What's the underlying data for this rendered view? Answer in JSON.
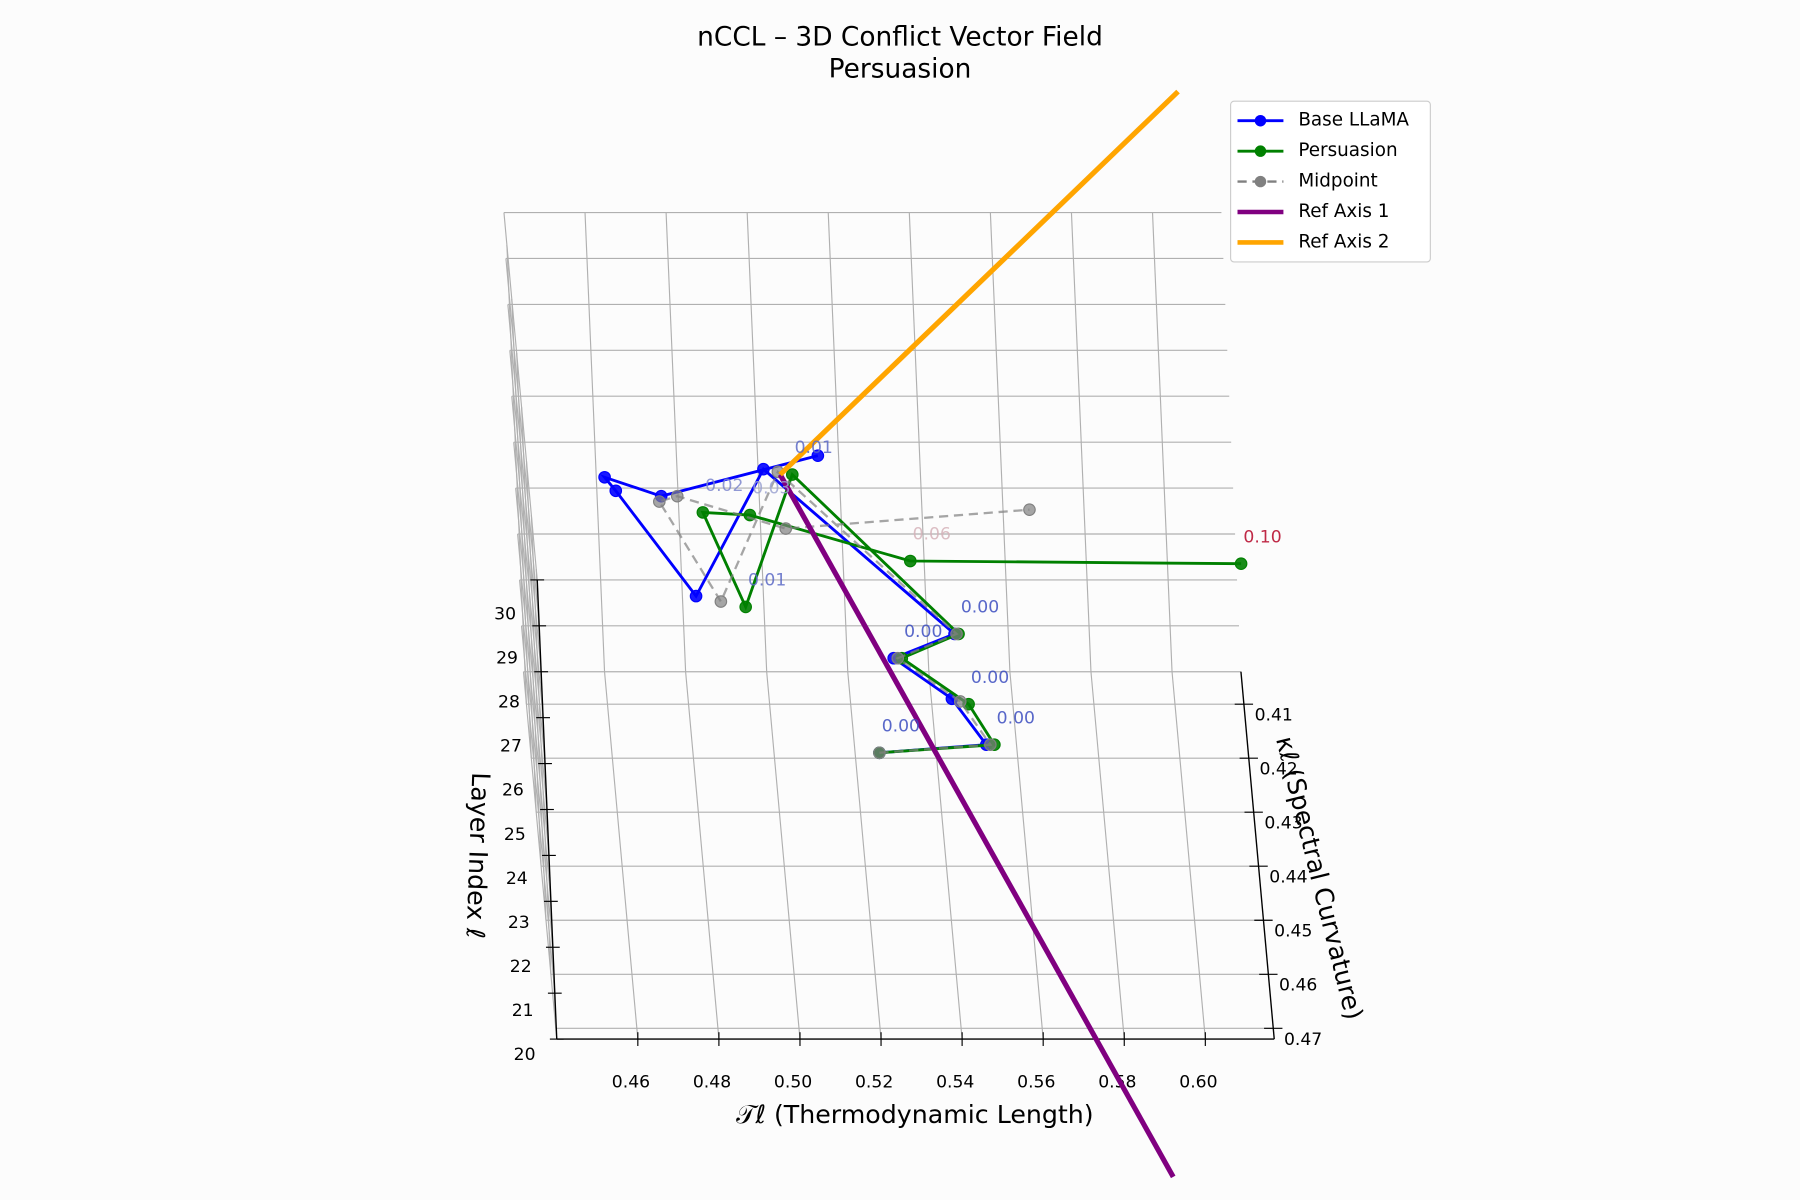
{
  "chart_data": {
    "type": "line3d",
    "title": "nCCL – 3D Conflict Vector Field",
    "subtitle": "Persuasion",
    "xlabel": "𝒯ℓ (Thermodynamic Length)",
    "ylabel": "κℓ (Spectral Curvature)",
    "zlabel": "Layer Index ℓ",
    "xlim": [
      0.44,
      0.617
    ],
    "ylim": [
      0.404,
      0.472
    ],
    "zlim": [
      20,
      30
    ],
    "xticks": [
      0.46,
      0.48,
      {
        "value": 0.5,
        "label": "0.50"
      },
      0.52,
      0.54,
      0.56,
      0.58,
      {
        "value": 0.6,
        "label": "0.60"
      }
    ],
    "yticks": [
      0.41,
      0.42,
      0.43,
      0.44,
      0.45,
      0.46,
      0.47
    ],
    "zticks": [
      20,
      21,
      22,
      23,
      24,
      25,
      26,
      27,
      28,
      29,
      30
    ],
    "grid": true,
    "legend": "upper right",
    "series": [
      {
        "name": "Base LLaMA",
        "color": "#0000ff",
        "linestyle": "solid",
        "marker": "o",
        "linewidth": 2.5,
        "x": [
          0.526,
          0.552,
          0.544,
          0.53,
          0.545,
          0.501,
          0.481,
          0.463,
          0.46,
          0.473,
          0.512
        ],
        "y": [
          0.419,
          0.426,
          0.426,
          0.427,
          0.431,
          0.409,
          0.441,
          0.43,
          0.436,
          0.448,
          0.449
        ],
        "z": [
          20,
          21,
          22,
          23,
          24,
          25,
          26,
          27,
          28,
          29,
          30
        ]
      },
      {
        "name": "Persuasion",
        "color": "#008000",
        "linestyle": "solid",
        "marker": "o",
        "linewidth": 2.5,
        "x": [
          0.526,
          0.554,
          0.548,
          0.532,
          0.546,
          0.508,
          0.493,
          0.484,
          0.495,
          0.533,
          0.614
        ],
        "y": [
          0.419,
          0.426,
          0.427,
          0.427,
          0.431,
          0.41,
          0.443,
          0.434,
          0.443,
          0.46,
          0.469
        ],
        "z": [
          20,
          21,
          22,
          23,
          24,
          25,
          26,
          27,
          28,
          29,
          30
        ]
      },
      {
        "name": "Midpoint",
        "color": "#808080",
        "linestyle": "dashed",
        "marker": "o",
        "linewidth": 2,
        "x": [
          0.526,
          0.553,
          0.546,
          0.531,
          0.5455,
          0.5045,
          0.487,
          0.4735,
          0.4775,
          0.503,
          0.563
        ],
        "y": [
          0.419,
          0.426,
          0.4265,
          0.427,
          0.431,
          0.4095,
          0.442,
          0.432,
          0.4395,
          0.454,
          0.459
        ],
        "z": [
          20,
          21,
          22,
          23,
          24,
          25,
          26,
          27,
          28,
          29,
          30
        ]
      },
      {
        "name": "Ref Axis 1",
        "color": "#800080",
        "linestyle": "solid",
        "marker": "none",
        "linewidth": 4.5,
        "x": [
          0.505,
          0.589
        ],
        "y": [
          0.41,
          0.4975
        ],
        "z": [
          25,
          20
        ]
      },
      {
        "name": "Ref Axis 2",
        "color": "#ffa500",
        "linestyle": "solid",
        "marker": "none",
        "linewidth": 4.5,
        "x": [
          0.505,
          0.609
        ],
        "y": [
          0.41,
          0.3816
        ],
        "z": [
          25,
          30
        ]
      }
    ],
    "conflict_values": [
      0,
      0,
      0,
      0,
      0,
      0.01,
      0.01,
      0.02,
      0.03,
      0.06,
      0.1
    ],
    "conflict_labels": [
      "0.00",
      "0.00",
      "0.00",
      "0.00",
      "0.00",
      "0.01",
      "0.01",
      "0.02",
      "0.03",
      "0.06",
      "0.10"
    ]
  }
}
